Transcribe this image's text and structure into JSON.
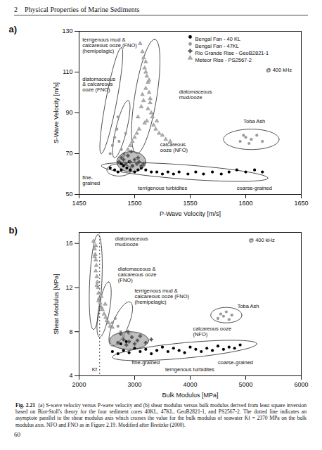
{
  "header": {
    "chapter": "2",
    "title": "Physical Properties of Marine Sediments"
  },
  "chart_data": [
    {
      "type": "scatter",
      "panel": "a)",
      "x_label": "P-Wave Velocity [m/s]",
      "y_label": "S-Wave Velocity [m/s]",
      "xlim": [
        1450,
        1650
      ],
      "xticks": [
        1450,
        1500,
        1550,
        1600,
        1650
      ],
      "ylim": [
        50,
        130
      ],
      "yticks": [
        50,
        70,
        90,
        110,
        130
      ],
      "legend": "top-right",
      "series": [
        {
          "name": "Bengal Fan - 40 KL",
          "color": "#000000",
          "marker": "circle",
          "x": [
            1478,
            1482,
            1485,
            1488,
            1490,
            1493,
            1496,
            1500,
            1503,
            1506,
            1510,
            1515,
            1520,
            1525,
            1530,
            1535,
            1540,
            1548,
            1555,
            1562,
            1570,
            1578,
            1585,
            1592,
            1600,
            1608,
            1615,
            1488,
            1495,
            1498
          ],
          "values": [
            63,
            62,
            61,
            62,
            64,
            63,
            62,
            61,
            62,
            63,
            62,
            61,
            61,
            60,
            61,
            60,
            61,
            60,
            61,
            60,
            61,
            60,
            61,
            62,
            61,
            62,
            61,
            65,
            66,
            64
          ]
        },
        {
          "name": "Bengal Fan - 47KL",
          "color": "#9a9a9a",
          "marker": "circle",
          "x": [
            1478,
            1480,
            1482,
            1484,
            1486,
            1488,
            1490,
            1485,
            1492,
            1595,
            1600,
            1605,
            1610,
            1615,
            1603,
            1598
          ],
          "values": [
            70,
            74,
            78,
            82,
            76,
            72,
            69,
            88,
            80,
            76,
            78,
            77,
            79,
            76,
            75,
            79
          ]
        },
        {
          "name": "Rio Grande Rise - GeoB2821-1",
          "color": "#555555",
          "marker": "cross",
          "x": [
            1486,
            1488,
            1490,
            1492,
            1494,
            1496,
            1498,
            1500,
            1502,
            1504,
            1506,
            1508,
            1491,
            1497,
            1503
          ],
          "values": [
            66,
            68,
            67,
            65,
            69,
            66,
            64,
            67,
            65,
            66,
            64,
            65,
            70,
            71,
            68
          ]
        },
        {
          "name": "Meteor Rise - PS2567-2",
          "color": "#b0b0b0",
          "marker": "triangle",
          "x": [
            1505,
            1507,
            1508,
            1509,
            1510,
            1511,
            1512,
            1510,
            1513,
            1514,
            1508,
            1506,
            1512,
            1515,
            1516,
            1511,
            1509,
            1504,
            1502,
            1500,
            1498,
            1503,
            1517,
            1519,
            1522,
            1525,
            1528,
            1532,
            1520,
            1514,
            1496,
            1494,
            1492,
            1510,
            1513,
            1507
          ],
          "values": [
            124,
            120,
            117,
            112,
            110,
            108,
            105,
            102,
            100,
            97,
            96,
            93,
            92,
            90,
            88,
            86,
            85,
            82,
            80,
            78,
            76,
            88,
            84,
            82,
            80,
            79,
            77,
            76,
            86,
            95,
            74,
            72,
            70,
            115,
            106,
            99
          ]
        }
      ],
      "regions": [
        {
          "cx": 1479,
          "cy": 96,
          "ax": 9,
          "ay": 26,
          "bx": 5,
          "by": 0
        },
        {
          "cx": 1488,
          "cy": 82,
          "ax": 6,
          "ay": 14,
          "bx": 5,
          "by": 0
        },
        {
          "cx": 1510,
          "cy": 98,
          "ax": 8,
          "ay": 28,
          "bx": 10,
          "by": 0
        },
        {
          "cx": 1497,
          "cy": 66,
          "ax": 13,
          "ay": 0,
          "bx": 0,
          "by": 5,
          "color": "#8a8a8a"
        },
        {
          "cx": 1486,
          "cy": 62,
          "ax": 11,
          "ay": 0,
          "bx": 0,
          "by": 3
        },
        {
          "cx": 1545,
          "cy": 61,
          "ax": 75,
          "ay": -3,
          "bx": 0,
          "by": 3.5
        },
        {
          "cx": 1605,
          "cy": 77,
          "ax": 25,
          "ay": 0,
          "bx": 0,
          "by": 5
        }
      ],
      "annotations": [
        {
          "text": "terrigenous mud &\ncalcareous ooze (FNO)\n(hemipelagic)",
          "x": 1453,
          "y": 123
        },
        {
          "text": "diatomaceous\n& calcareous\nooze (FNO)",
          "x": 1453,
          "y": 104
        },
        {
          "text": "diatomaceous\nmud/ooze",
          "x": 1540,
          "y": 99
        },
        {
          "text": "Toba Ash",
          "x": 1598,
          "y": 86
        },
        {
          "text": "calcareous\nooze (NFO)",
          "x": 1523,
          "y": 73
        },
        {
          "text": "fine-\ngrained",
          "x": 1453,
          "y": 57
        },
        {
          "text": "terrigenous turbidites",
          "x": 1503,
          "y": 53
        },
        {
          "text": "coarse-grained",
          "x": 1592,
          "y": 53
        },
        {
          "text": "@ 400 kHz",
          "x": 1618,
          "y": 111
        }
      ]
    },
    {
      "type": "scatter",
      "panel": "b)",
      "x_label": "Bulk Modulus [MPa]",
      "y_label": "Shear Modulus [MPa]",
      "xlim": [
        2000,
        6000
      ],
      "xticks": [
        2000,
        3000,
        4000,
        5000,
        6000
      ],
      "ylim": [
        4,
        17
      ],
      "yticks": [
        4,
        8,
        12,
        16
      ],
      "reference_line": 2370,
      "series": [
        {
          "name": "Bengal Fan - 40 KL",
          "color": "#000000",
          "marker": "circle",
          "x": [
            2600,
            2700,
            2800,
            2900,
            3000,
            3100,
            3200,
            3300,
            3400,
            3500,
            3600,
            3700,
            3800,
            3900,
            4000,
            4100,
            4200,
            4300,
            4400,
            4500,
            4600,
            4700,
            4800,
            4900,
            2750,
            2850
          ],
          "values": [
            6.2,
            6.0,
            6.3,
            6.1,
            6.5,
            6.2,
            6.4,
            6.0,
            6.3,
            6.6,
            6.2,
            6.5,
            6.3,
            6.1,
            6.6,
            6.4,
            6.2,
            6.5,
            6.3,
            6.7,
            6.4,
            6.6,
            6.5,
            6.8,
            6.9,
            7.1
          ]
        },
        {
          "name": "Bengal Fan - 47KL",
          "color": "#9a9a9a",
          "marker": "circle",
          "x": [
            2600,
            2650,
            2700,
            2750,
            2800,
            2900,
            4500,
            4550,
            4600,
            4650,
            4700,
            4750
          ],
          "values": [
            8.8,
            9.2,
            8.5,
            8.0,
            7.6,
            7.8,
            9.2,
            9.6,
            9.4,
            9.8,
            9.1,
            9.5
          ]
        },
        {
          "name": "Rio Grande Rise - GeoB2821-1",
          "color": "#555555",
          "marker": "cross",
          "x": [
            2700,
            2800,
            2850,
            2900,
            2950,
            3000,
            3050,
            3100,
            3200,
            2750,
            2880,
            3300
          ],
          "values": [
            7.0,
            7.3,
            6.8,
            7.1,
            7.5,
            6.9,
            7.2,
            7.6,
            7.0,
            7.8,
            8.0,
            7.3
          ]
        },
        {
          "name": "Meteor Rise - PS2567-2",
          "color": "#b0b0b0",
          "marker": "triangle",
          "x": [
            2260,
            2280,
            2290,
            2300,
            2310,
            2300,
            2320,
            2330,
            2340,
            2350,
            2360,
            2380,
            2400,
            2420,
            2450,
            2480,
            2500,
            2530,
            2560,
            2300,
            2280,
            2320,
            2350,
            2400,
            2470,
            2600
          ],
          "values": [
            16.2,
            15.5,
            15,
            14.5,
            14,
            13.5,
            13,
            12.5,
            12,
            11.5,
            11,
            10.6,
            10.2,
            10,
            9.6,
            9.3,
            9,
            8.8,
            8.5,
            15.8,
            14.8,
            12.2,
            10.8,
            11.2,
            10.5,
            8.4
          ]
        }
      ],
      "regions": [
        {
          "cx": 2300,
          "cy": 12.5,
          "ax": 40,
          "ay": 4.3,
          "bx": 110,
          "by": 0
        },
        {
          "cx": 2450,
          "cy": 10,
          "ax": 80,
          "ay": 2.5,
          "bx": 100,
          "by": 0
        },
        {
          "cx": 2750,
          "cy": 8.7,
          "ax": 150,
          "ay": 2,
          "bx": 150,
          "by": 0
        },
        {
          "cx": 4650,
          "cy": 9.5,
          "ax": 280,
          "ay": 0,
          "bx": 0,
          "by": 0.7
        },
        {
          "cx": 2900,
          "cy": 7.2,
          "ax": 350,
          "ay": 0,
          "bx": 0,
          "by": 0.8,
          "color": "#8a8a8a"
        },
        {
          "cx": 3900,
          "cy": 6.3,
          "ax": 1300,
          "ay": 0.6,
          "bx": 0,
          "by": 0.7
        }
      ],
      "annotations": [
        {
          "text": "diatomaceous\nmud/ooze",
          "x": 2650,
          "y": 16.2
        },
        {
          "text": "diatomaceous &\ncalcareous ooze\n(FNO)",
          "x": 2700,
          "y": 13.2
        },
        {
          "text": "terrigenous mud &\ncalcareous ooze (FNO)\n(hemipelagic)",
          "x": 3000,
          "y": 11.2
        },
        {
          "text": "Toba Ash",
          "x": 4850,
          "y": 10.3
        },
        {
          "text": "calcareous ooze\n(NFO)",
          "x": 4050,
          "y": 8.0
        },
        {
          "text": "fine-grained",
          "x": 2950,
          "y": 5.2
        },
        {
          "text": "coarse-grained",
          "x": 4500,
          "y": 5.2
        },
        {
          "text": "terrigenous turbidites",
          "x": 3550,
          "y": 4.6
        },
        {
          "text": "Kf",
          "x": 2230,
          "y": 4.6
        },
        {
          "text": "@ 400 kHz",
          "x": 5050,
          "y": 16.3
        }
      ]
    }
  ],
  "caption": {
    "label": "Fig. 2.21",
    "text": "(a) S-wave velocity versus P-wave velocity and (b) shear modulus versus bulk modulus derived from least square inversion based on Biot-Stoll's theory for the four sediment cores 40KL, 47KL, GeoB2821-1, and PS2567-2. The dotted line indicates an asymptote parallel to the shear modulus axis which crosses the value for the bulk modulus of seawater Kf = 2370 MPa on the bulk modulus axis. NFO and FNO as in Figure 2.19. Modified after Breitzke (2000)."
  },
  "page_number": "60"
}
